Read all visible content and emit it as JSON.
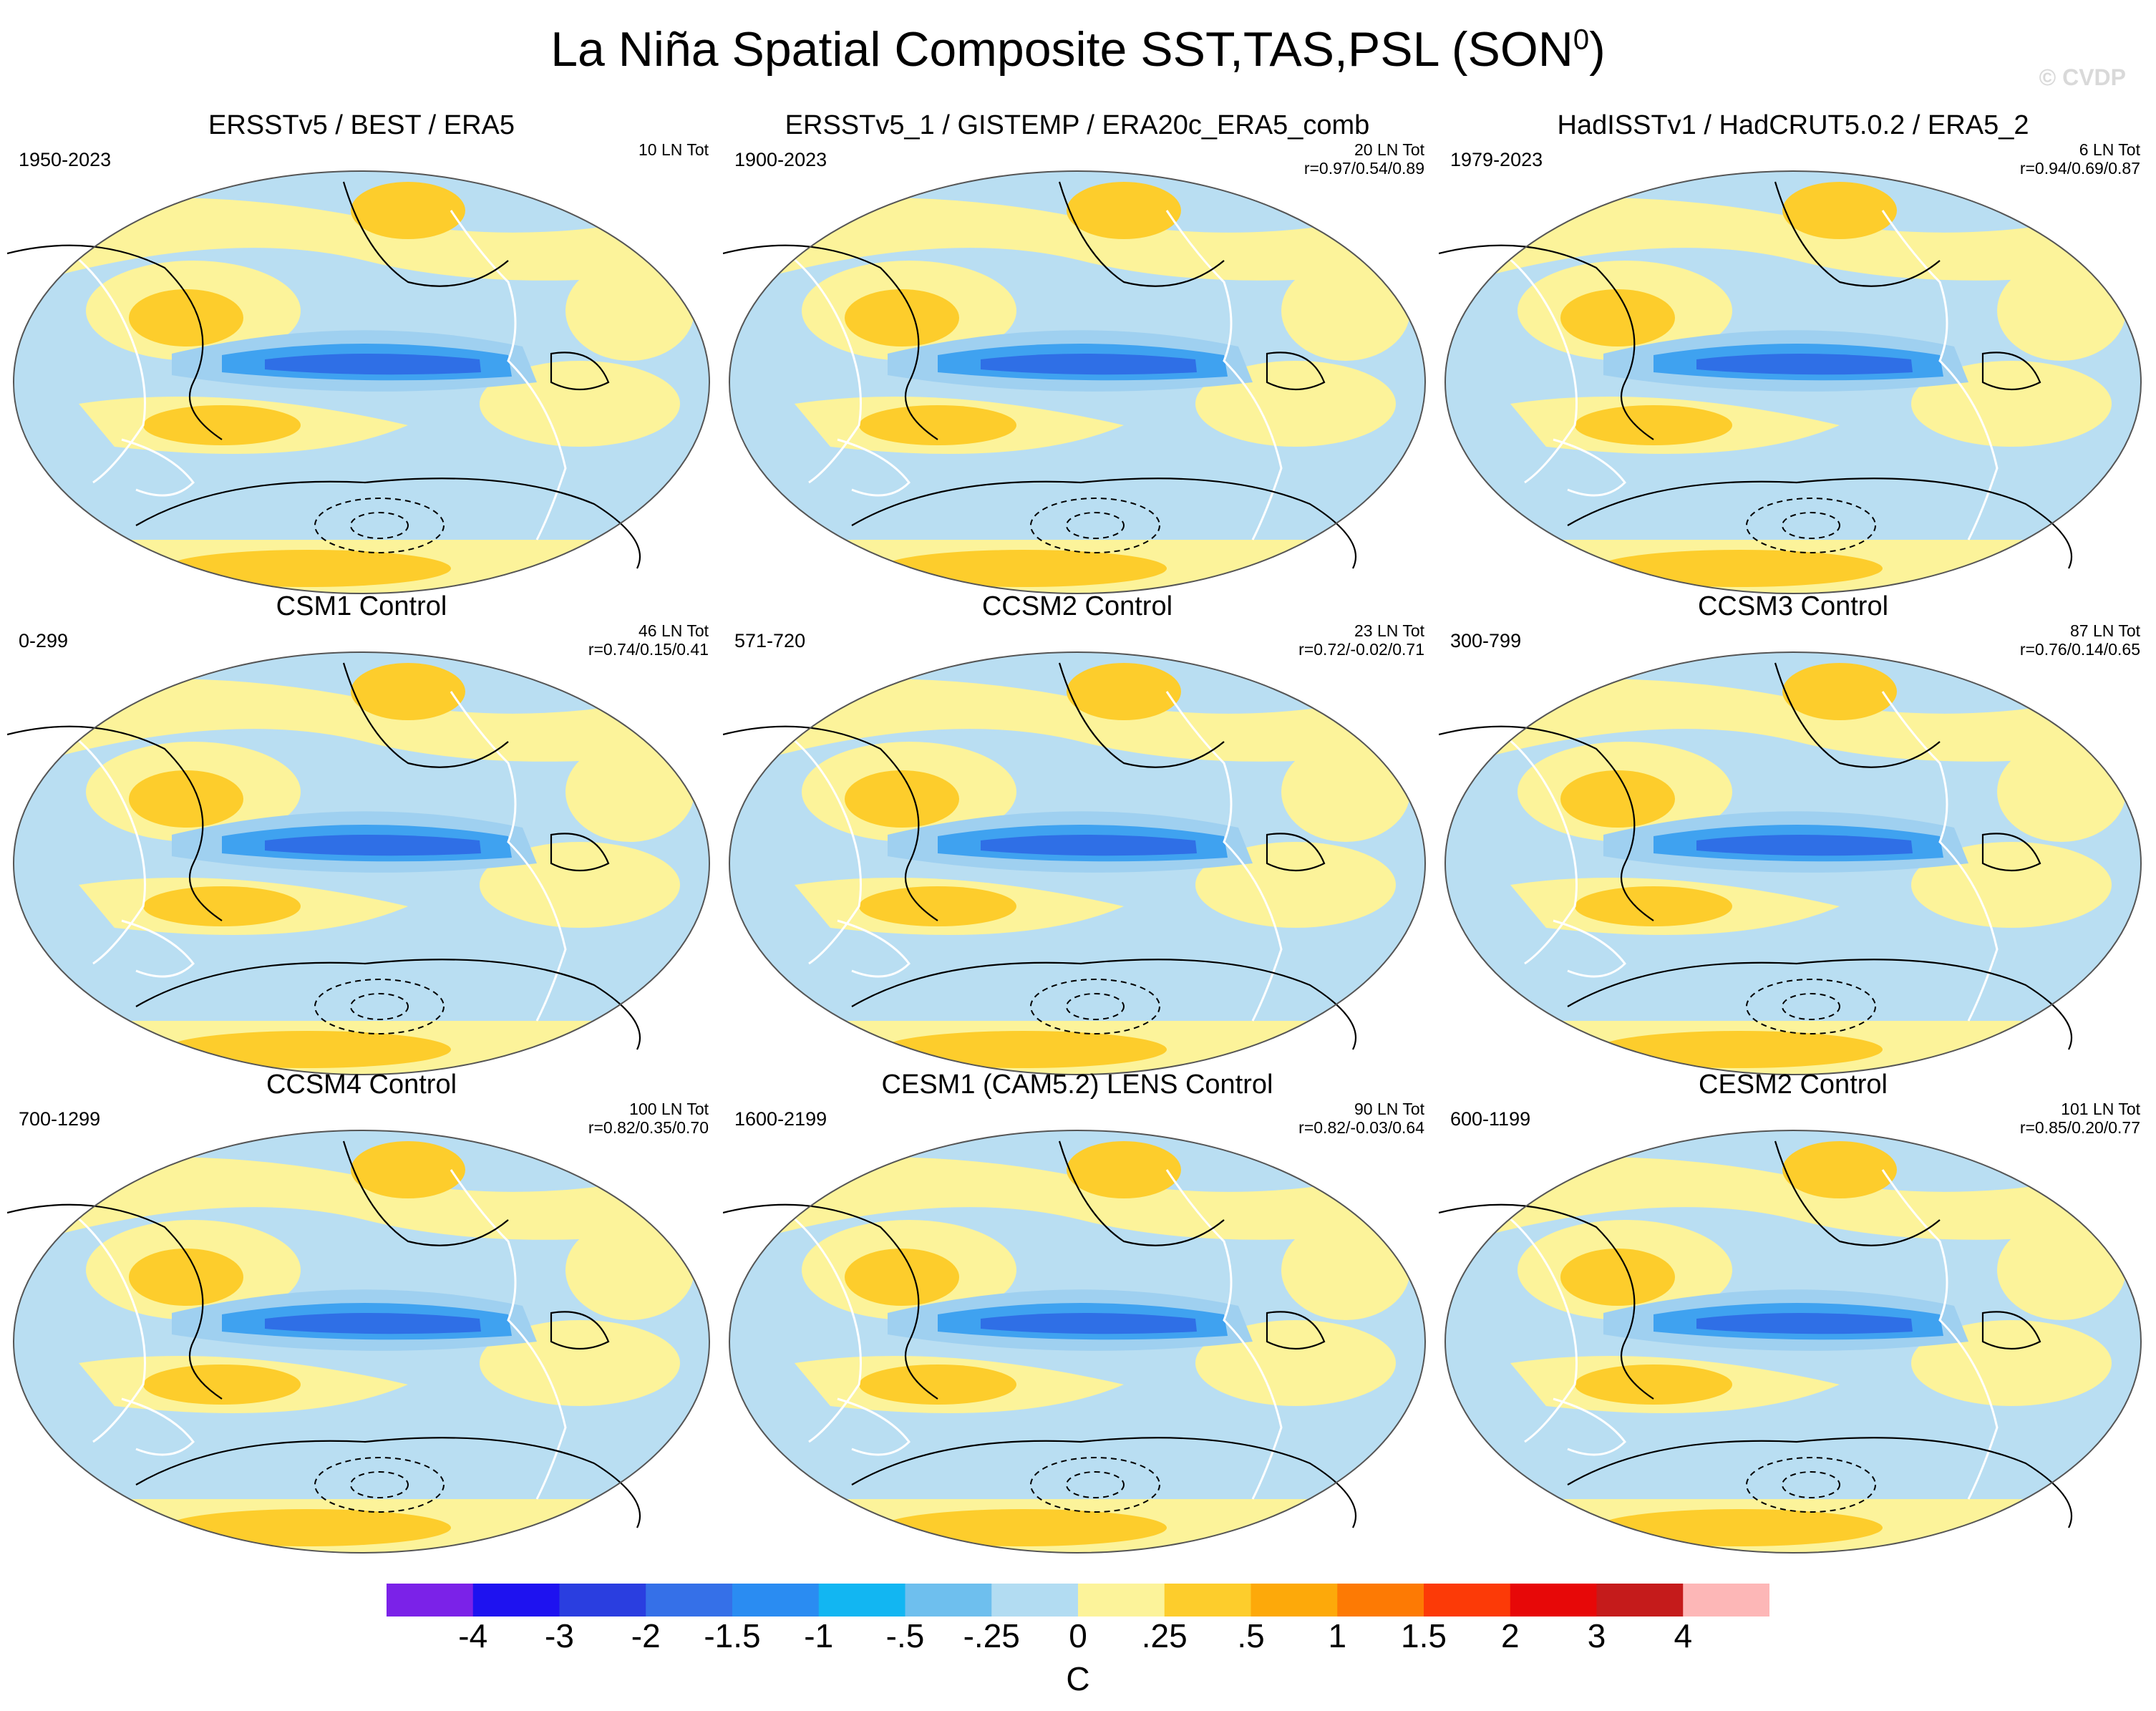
{
  "title": "La Niña Spatial Composite SST,TAS,PSL (SON",
  "title_sup": "0",
  "title_close": ")",
  "watermark": "© CVDP",
  "panels": [
    {
      "title": "ERSSTv5 / BEST / ERA5",
      "years": "1950-2023",
      "count": "10 LN Tot",
      "corr": ""
    },
    {
      "title": "ERSSTv5_1 / GISTEMP / ERA20c_ERA5_comb",
      "years": "1900-2023",
      "count": "20 LN Tot",
      "corr": "r=0.97/0.54/0.89"
    },
    {
      "title": "HadISSTv1 / HadCRUT5.0.2 / ERA5_2",
      "years": "1979-2023",
      "count": "6 LN Tot",
      "corr": "r=0.94/0.69/0.87"
    },
    {
      "title": "CSM1 Control",
      "years": "0-299",
      "count": "46 LN Tot",
      "corr": "r=0.74/0.15/0.41"
    },
    {
      "title": "CCSM2 Control",
      "years": "571-720",
      "count": "23 LN Tot",
      "corr": "r=0.72/-0.02/0.71"
    },
    {
      "title": "CCSM3 Control",
      "years": "300-799",
      "count": "87 LN Tot",
      "corr": "r=0.76/0.14/0.65"
    },
    {
      "title": "CCSM4 Control",
      "years": "700-1299",
      "count": "100 LN Tot",
      "corr": "r=0.82/0.35/0.70"
    },
    {
      "title": "CESM1 (CAM5.2) LENS Control",
      "years": "1600-2199",
      "count": "90 LN Tot",
      "corr": "r=0.82/-0.03/0.64"
    },
    {
      "title": "CESM2 Control",
      "years": "600-1199",
      "count": "101 LN Tot",
      "corr": "r=0.85/0.20/0.77"
    }
  ],
  "colorbar": {
    "unit": "C",
    "labels": [
      "-4",
      "-3",
      "-2",
      "-1.5",
      "-1",
      "-.5",
      "-.25",
      "0",
      ".25",
      ".5",
      "1",
      "1.5",
      "2",
      "3",
      "4"
    ],
    "colors": [
      "#7b22e8",
      "#1e12f0",
      "#2a3ee0",
      "#3570e8",
      "#2a8cf2",
      "#12b6f2",
      "#6ebfee",
      "#b2dcf2",
      "#fcf39a",
      "#fdcd2c",
      "#fda90a",
      "#fd7a04",
      "#fc3a07",
      "#e70808",
      "#c51b1b",
      "#fdb7b7"
    ]
  },
  "palette": {
    "deep_blue": "#2f6fe6",
    "mid_blue": "#3fa2f0",
    "light_blue": "#9fd0f0",
    "pale_blue": "#b9def2",
    "pale_yellow": "#fcf39a",
    "gold": "#fdcd2c",
    "orange": "#fda90a"
  }
}
